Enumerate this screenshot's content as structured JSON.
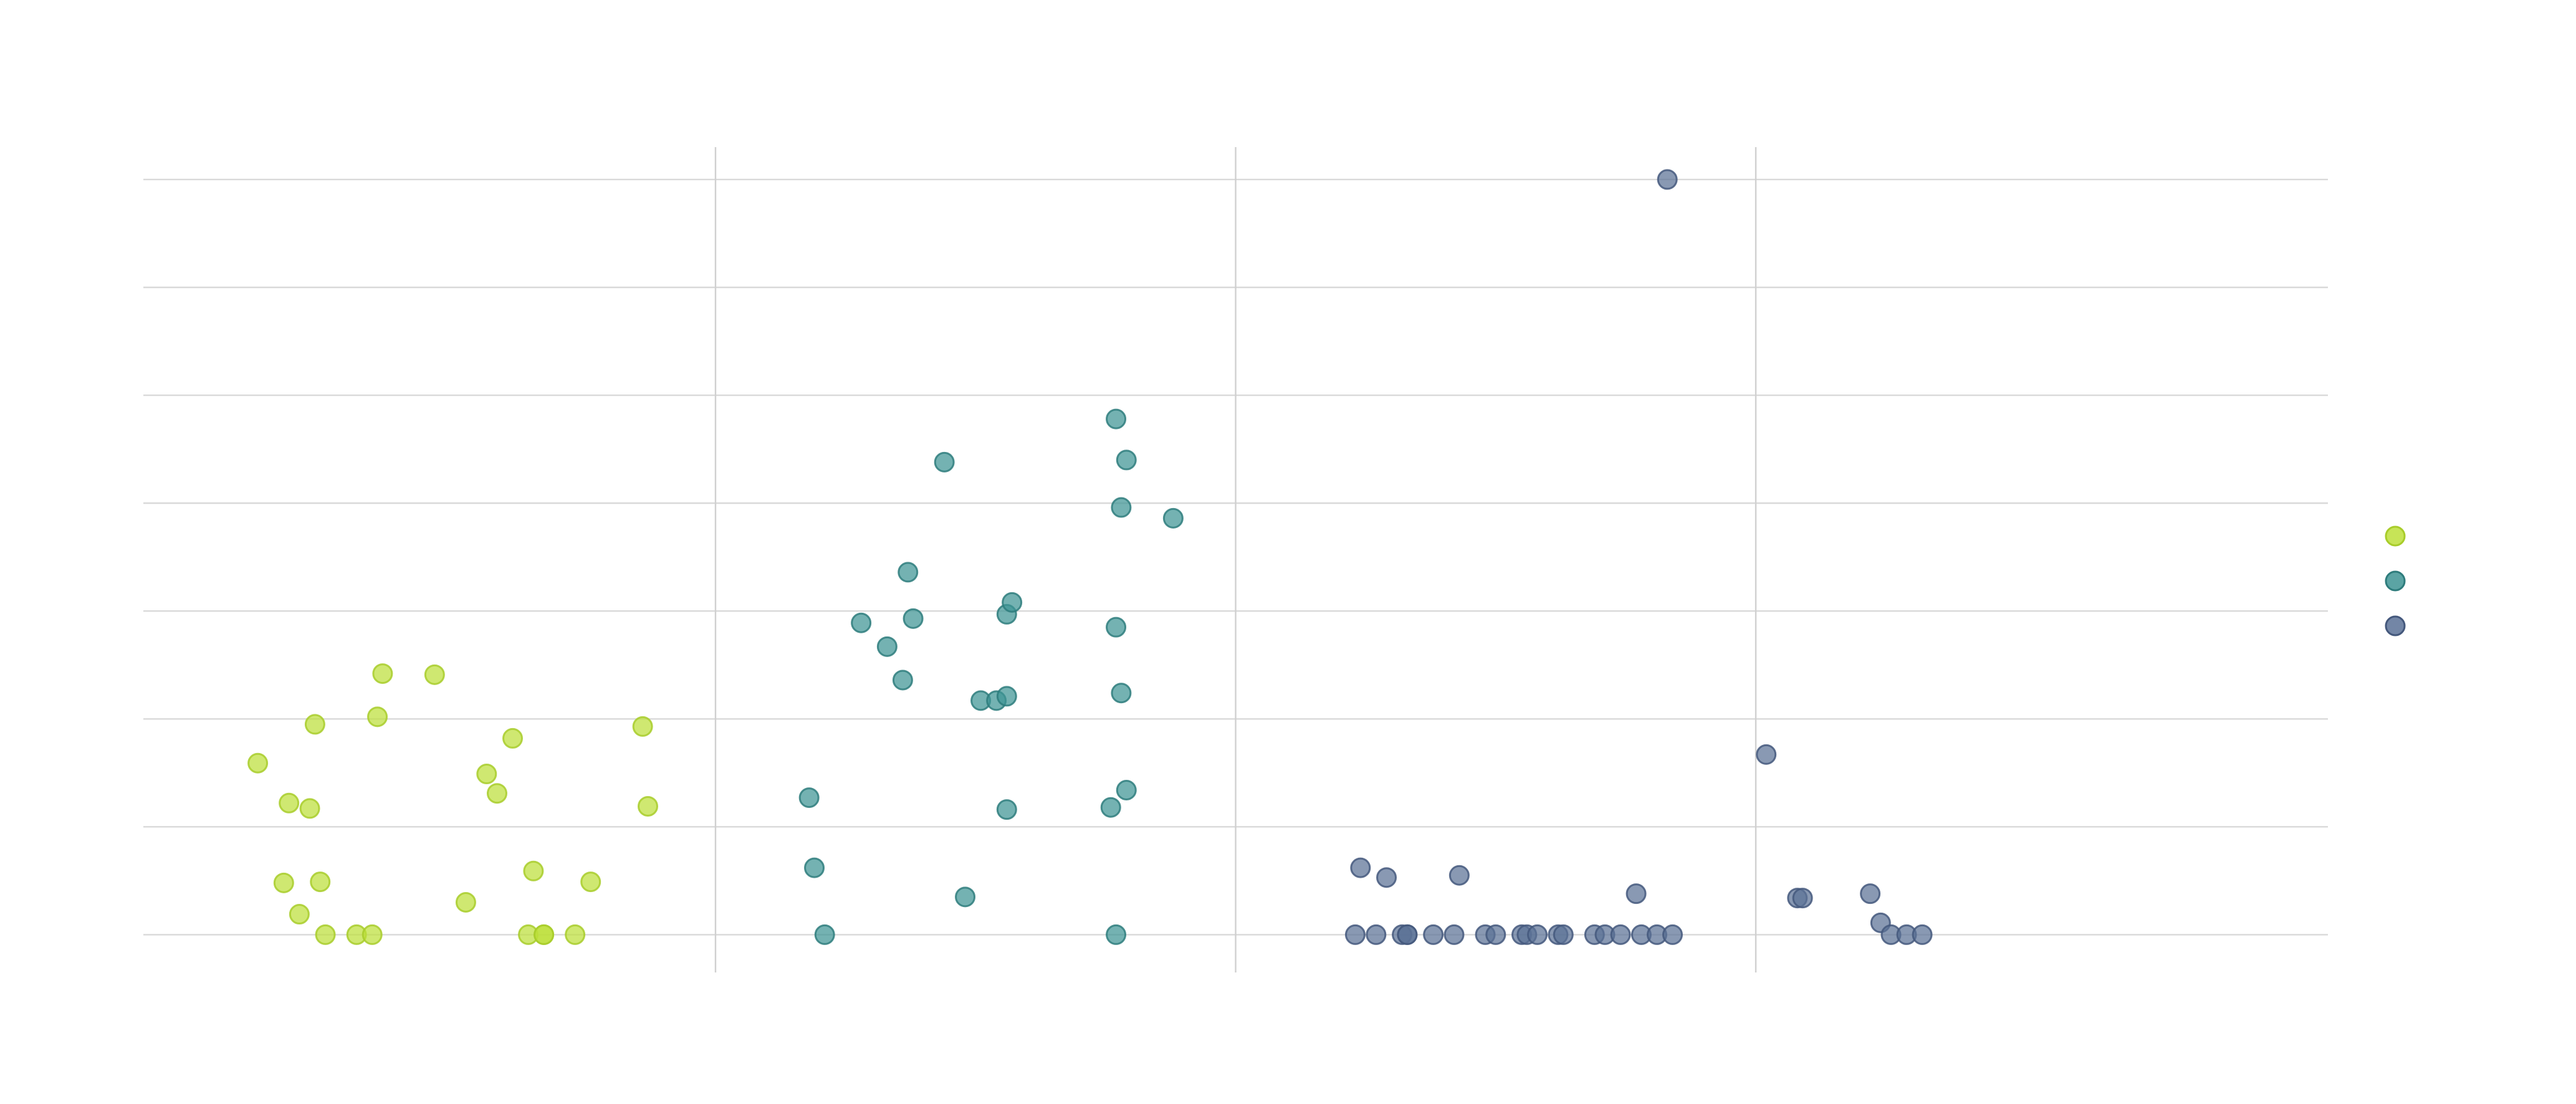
{
  "chart_data": {
    "type": "scatter",
    "title": "",
    "xlabel": "",
    "ylabel": "",
    "grid": true,
    "legend_position": "right",
    "x_range": [
      -1.6,
      2.6
    ],
    "y_range": [
      -0.35,
      7.3
    ],
    "x_gridlines": [
      -0.5,
      0.5,
      1.5
    ],
    "y_gridlines": [
      0,
      1,
      2,
      3,
      4,
      5,
      6,
      7
    ],
    "series": [
      {
        "color": "#bddf3a",
        "stroke": "#a8cc2a",
        "points": [
          [
            -1.38,
            1.59
          ],
          [
            -1.33,
            0.48
          ],
          [
            -1.32,
            1.22
          ],
          [
            -1.3,
            0.19
          ],
          [
            -1.28,
            1.17
          ],
          [
            -1.27,
            1.95
          ],
          [
            -1.26,
            0.49
          ],
          [
            -1.25,
            0.0
          ],
          [
            -1.19,
            0.0
          ],
          [
            -1.16,
            0.0
          ],
          [
            -1.15,
            2.02
          ],
          [
            -1.14,
            2.42
          ],
          [
            -1.04,
            2.41
          ],
          [
            -0.98,
            0.3
          ],
          [
            -0.94,
            1.49
          ],
          [
            -0.92,
            1.31
          ],
          [
            -0.89,
            1.82
          ],
          [
            -0.86,
            0.0
          ],
          [
            -0.85,
            0.59
          ],
          [
            -0.83,
            0.0
          ],
          [
            -0.83,
            0.0
          ],
          [
            -0.77,
            0.0
          ],
          [
            -0.74,
            0.49
          ],
          [
            -0.64,
            1.93
          ],
          [
            -0.63,
            1.19
          ]
        ]
      },
      {
        "color": "#3e9494",
        "stroke": "#2e7c7c",
        "points": [
          [
            -0.32,
            1.27
          ],
          [
            -0.31,
            0.62
          ],
          [
            -0.29,
            0.0
          ],
          [
            -0.22,
            2.89
          ],
          [
            -0.17,
            2.67
          ],
          [
            -0.14,
            2.36
          ],
          [
            -0.13,
            3.36
          ],
          [
            -0.12,
            2.93
          ],
          [
            -0.06,
            4.38
          ],
          [
            -0.02,
            0.35
          ],
          [
            0.01,
            2.17
          ],
          [
            0.04,
            2.17
          ],
          [
            0.06,
            1.16
          ],
          [
            0.06,
            2.97
          ],
          [
            0.06,
            2.21
          ],
          [
            0.07,
            3.08
          ],
          [
            0.26,
            1.18
          ],
          [
            0.27,
            4.78
          ],
          [
            0.27,
            2.85
          ],
          [
            0.27,
            0.0
          ],
          [
            0.28,
            3.96
          ],
          [
            0.28,
            2.24
          ],
          [
            0.29,
            4.4
          ],
          [
            0.29,
            1.34
          ],
          [
            0.38,
            3.86
          ]
        ]
      },
      {
        "color": "#5b7196",
        "stroke": "#44587c",
        "points": [
          [
            0.73,
            0.0
          ],
          [
            0.74,
            0.62
          ],
          [
            0.77,
            0.0
          ],
          [
            0.79,
            0.53
          ],
          [
            0.82,
            0.0
          ],
          [
            0.83,
            0.0
          ],
          [
            0.83,
            0.0
          ],
          [
            0.88,
            0.0
          ],
          [
            0.92,
            0.0
          ],
          [
            0.93,
            0.55
          ],
          [
            0.98,
            0.0
          ],
          [
            1.0,
            0.0
          ],
          [
            1.05,
            0.0
          ],
          [
            1.06,
            0.0
          ],
          [
            1.08,
            0.0
          ],
          [
            1.12,
            0.0
          ],
          [
            1.13,
            0.0
          ],
          [
            1.19,
            0.0
          ],
          [
            1.21,
            0.0
          ],
          [
            1.24,
            0.0
          ],
          [
            1.27,
            0.38
          ],
          [
            1.28,
            0.0
          ],
          [
            1.31,
            0.0
          ],
          [
            1.34,
            0.0
          ],
          [
            1.52,
            1.67
          ],
          [
            1.58,
            0.34
          ],
          [
            1.59,
            0.34
          ],
          [
            1.72,
            0.38
          ],
          [
            1.74,
            0.11
          ],
          [
            1.76,
            0.0
          ],
          [
            1.79,
            0.0
          ],
          [
            1.82,
            0.0
          ],
          [
            1.33,
            7.0
          ]
        ]
      }
    ]
  }
}
